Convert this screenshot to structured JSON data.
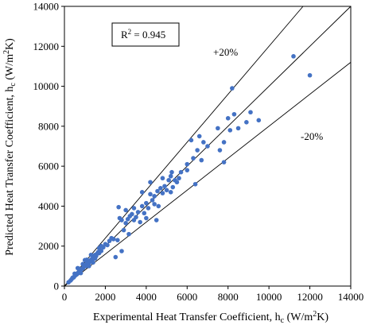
{
  "chart_data": {
    "type": "scatter",
    "xlabel": "Experimental Heat Transfer Coefficient, h",
    "xlabel_sub": "c",
    "xlabel_unit_pre": " (W/m",
    "xlabel_unit_sup": "2",
    "xlabel_unit_post": "K)",
    "ylabel": "Predicted Heat Transfer Coefficient, h",
    "ylabel_sub": "c",
    "ylabel_unit_pre": " (W/m",
    "ylabel_unit_sup": "2",
    "ylabel_unit_post": "K)",
    "xlim": [
      0,
      14000
    ],
    "ylim": [
      0,
      14000
    ],
    "xticks": [
      0,
      2000,
      4000,
      6000,
      8000,
      10000,
      12000,
      14000
    ],
    "yticks": [
      0,
      2000,
      4000,
      6000,
      8000,
      10000,
      12000,
      14000
    ],
    "xtick_labels": [
      "0",
      "2000",
      "4000",
      "6000",
      "8000",
      "10000",
      "12000",
      "14000"
    ],
    "ytick_labels": [
      "0",
      "2000",
      "4000",
      "6000",
      "8000",
      "10000",
      "12000",
      "14000"
    ],
    "r2_label": "R",
    "r2_sup": "2",
    "r2_value": " = 0.945",
    "plus_label": "+20%",
    "minus_label": "-20%",
    "reference_lines": [
      {
        "label": "+20%",
        "slope": 1.2
      },
      {
        "label": "",
        "slope": 1.0
      },
      {
        "label": "-20%",
        "slope": 0.8
      }
    ],
    "marker_color": "#4472c4",
    "points": [
      [
        200,
        190
      ],
      [
        300,
        280
      ],
      [
        350,
        340
      ],
      [
        400,
        420
      ],
      [
        450,
        430
      ],
      [
        500,
        500
      ],
      [
        550,
        560
      ],
      [
        600,
        580
      ],
      [
        650,
        640
      ],
      [
        700,
        700
      ],
      [
        750,
        730
      ],
      [
        800,
        820
      ],
      [
        850,
        860
      ],
      [
        900,
        880
      ],
      [
        950,
        960
      ],
      [
        1000,
        1010
      ],
      [
        1050,
        1000
      ],
      [
        1100,
        1120
      ],
      [
        1150,
        1180
      ],
      [
        1200,
        1150
      ],
      [
        1250,
        1240
      ],
      [
        1300,
        1320
      ],
      [
        1350,
        1280
      ],
      [
        1400,
        1430
      ],
      [
        1450,
        1400
      ],
      [
        1500,
        1560
      ],
      [
        1550,
        1500
      ],
      [
        1600,
        1620
      ],
      [
        1650,
        1700
      ],
      [
        1700,
        1650
      ],
      [
        1800,
        1760
      ],
      [
        1900,
        1940
      ],
      [
        2000,
        2100
      ],
      [
        2100,
        2050
      ],
      [
        2200,
        2260
      ],
      [
        2300,
        2400
      ],
      [
        2400,
        2350
      ],
      [
        500,
        620
      ],
      [
        700,
        880
      ],
      [
        900,
        1100
      ],
      [
        1100,
        1320
      ],
      [
        1300,
        1560
      ],
      [
        1500,
        1380
      ],
      [
        1700,
        1900
      ],
      [
        650,
        900
      ],
      [
        1000,
        1300
      ],
      [
        1200,
        1000
      ],
      [
        800,
        650
      ],
      [
        1400,
        1180
      ],
      [
        1800,
        2000
      ],
      [
        2500,
        1450
      ],
      [
        2600,
        2300
      ],
      [
        2650,
        3950
      ],
      [
        2700,
        3400
      ],
      [
        2800,
        1750
      ],
      [
        2900,
        2800
      ],
      [
        3000,
        3150
      ],
      [
        3100,
        3350
      ],
      [
        3150,
        2600
      ],
      [
        3200,
        3500
      ],
      [
        3300,
        3600
      ],
      [
        3400,
        3300
      ],
      [
        3500,
        3450
      ],
      [
        3600,
        3700
      ],
      [
        3700,
        3200
      ],
      [
        3800,
        4000
      ],
      [
        3900,
        3650
      ],
      [
        4000,
        4150
      ],
      [
        4100,
        3900
      ],
      [
        4200,
        4600
      ],
      [
        4300,
        4300
      ],
      [
        4400,
        4500
      ],
      [
        4500,
        3300
      ],
      [
        4550,
        4750
      ],
      [
        4600,
        4000
      ],
      [
        4700,
        4900
      ],
      [
        4800,
        4650
      ],
      [
        4900,
        5000
      ],
      [
        5000,
        4800
      ],
      [
        5100,
        5300
      ],
      [
        5200,
        5500
      ],
      [
        5250,
        5700
      ],
      [
        5300,
        4950
      ],
      [
        5400,
        5300
      ],
      [
        5500,
        5200
      ],
      [
        5600,
        5400
      ],
      [
        5700,
        5700
      ],
      [
        6000,
        6100
      ],
      [
        6200,
        7300
      ],
      [
        6300,
        6400
      ],
      [
        6400,
        5100
      ],
      [
        6500,
        6800
      ],
      [
        6600,
        7500
      ],
      [
        6700,
        6300
      ],
      [
        6800,
        7200
      ],
      [
        7000,
        7000
      ],
      [
        7600,
        6800
      ],
      [
        7800,
        7200
      ],
      [
        8000,
        8400
      ],
      [
        8100,
        7800
      ],
      [
        8200,
        9900
      ],
      [
        8300,
        8600
      ],
      [
        8500,
        7900
      ],
      [
        8900,
        8200
      ],
      [
        9100,
        8700
      ],
      [
        9500,
        8300
      ],
      [
        3000,
        3800
      ],
      [
        3400,
        3900
      ],
      [
        3800,
        4700
      ],
      [
        4200,
        5200
      ],
      [
        2800,
        3300
      ],
      [
        4000,
        3400
      ],
      [
        4400,
        4100
      ],
      [
        4800,
        5400
      ],
      [
        5200,
        4700
      ],
      [
        6000,
        5800
      ],
      [
        7500,
        7900
      ],
      [
        7800,
        6200
      ],
      [
        11200,
        11500
      ],
      [
        12000,
        10550
      ]
    ]
  }
}
